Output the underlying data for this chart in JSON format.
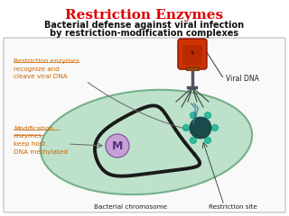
{
  "title": "Restriction Enzymes",
  "subtitle_line1": "Bacterial defense against viral infection",
  "subtitle_line2": "by restriction-modification complexes",
  "title_color": "#dd0000",
  "subtitle_color": "#111111",
  "bg_color": "#ffffff",
  "panel_border": "#bbbbbb",
  "panel_bg": "#f9f9f9",
  "annotation_orange": "#cc6600",
  "annotation_black": "#222222",
  "cell_fill": "#b8dfc8",
  "cell_border": "#6aaa80",
  "chromosome_color": "#1a1a1a",
  "mod_enzyme_fill": "#c8a0d8",
  "mod_enzyme_border": "#8860a0",
  "mod_enzyme_text": "#553080",
  "phage_head_fill": "#cc3300",
  "phage_head_border": "#881100",
  "phage_tail_color": "#555555",
  "phage_leg_color": "#444444",
  "viral_dna_label": "Viral DNA",
  "restriction_label": "Restriction enzymes\nrecognize and\ncleave viral DNA",
  "modification_label": "Modification\nenzymes\nkeep host\nDNA methylated",
  "bacterial_chr_label": "Bacterial chromosome",
  "restriction_site_label": "Restriction site",
  "restriction_enzyme_dark": "#1a4a4a",
  "teal_enzyme": "#00aa88",
  "figsize": [
    3.2,
    2.4
  ],
  "dpi": 100
}
